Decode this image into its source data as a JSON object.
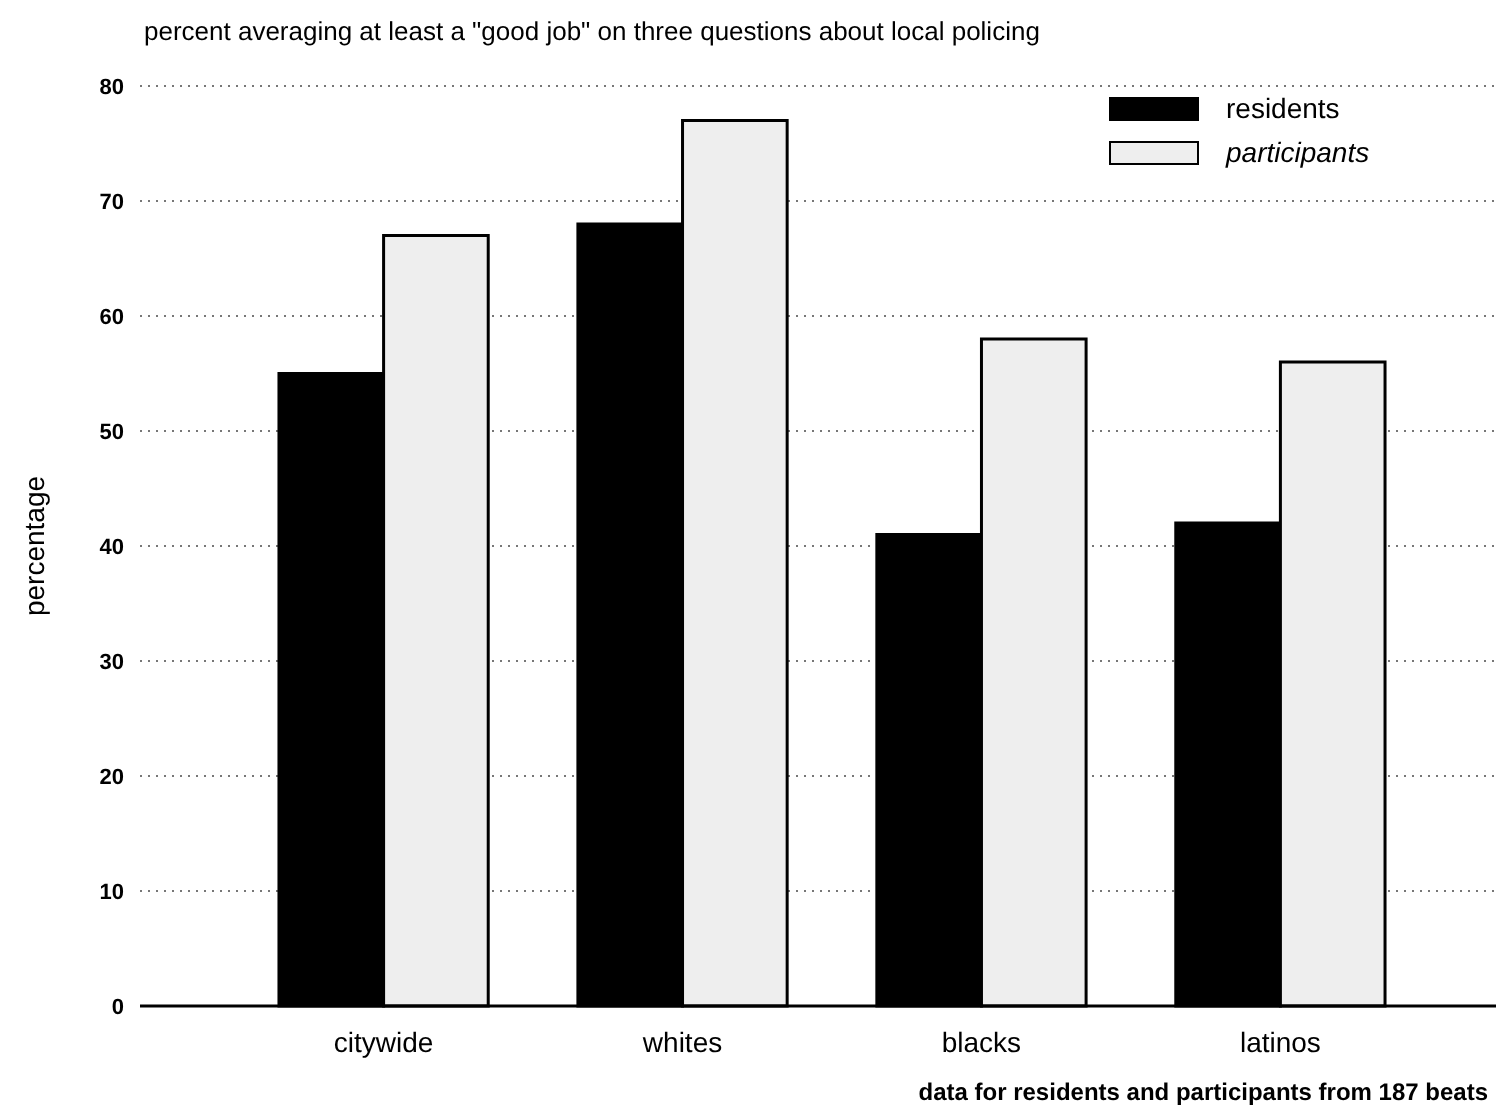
{
  "chart_data": {
    "type": "bar",
    "title": "percent averaging at least a \"good job\" on three questions about local policing",
    "ylabel": "percentage",
    "annotations": [
      "data for residents and participants from 187 beats"
    ],
    "categories": [
      "citywide",
      "whites",
      "blacks",
      "latinos"
    ],
    "series": [
      {
        "name": "residents",
        "color": "#000000",
        "values": [
          55,
          68,
          41,
          42
        ]
      },
      {
        "name": "participants",
        "color": "#eeeeee",
        "values": [
          67,
          77,
          58,
          56
        ]
      }
    ],
    "ylim": [
      0,
      80
    ],
    "yticks": [
      0,
      10,
      20,
      30,
      40,
      50,
      60,
      70,
      80
    ],
    "grid": "y",
    "legend": "top right"
  }
}
